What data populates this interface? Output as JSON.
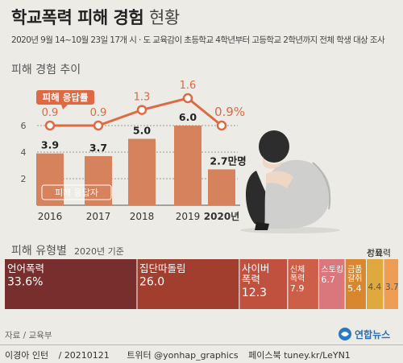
{
  "header": {
    "title_bold": "학교폭력 피해 경험",
    "title_light": "현황",
    "subtitle": "2020년 9월 14~10월 23일 17개 시 · 도 교육감이 초등학교 4학년부터 고등학교 2학년까지 전체 학생 대상 조사"
  },
  "trend_heading": "피해 경험 추이",
  "type_heading": "피해 유형별",
  "type_basis": "2020년 기준",
  "chart_data": [
    {
      "type": "bar",
      "categories": [
        "2016",
        "2017",
        "2018",
        "2019",
        "2020년"
      ],
      "series": [
        {
          "name": "피해 응답자",
          "unit": "만명",
          "values": [
            3.9,
            3.7,
            5.0,
            6.0,
            2.7
          ],
          "labels": [
            "3.9",
            "3.7",
            "5.0",
            "6.0",
            "2.7만명"
          ],
          "color": "#d6825c"
        },
        {
          "name": "피해 응답률",
          "type": "line",
          "unit": "%",
          "values": [
            0.9,
            0.9,
            1.3,
            1.6,
            0.9
          ],
          "labels": [
            "0.9",
            "0.9",
            "1.3",
            "1.6",
            "0.9%"
          ],
          "color": "#dd6a43"
        }
      ],
      "y_ticks": [
        "2",
        "4",
        "6"
      ],
      "ylim": [
        0,
        8
      ]
    },
    {
      "type": "bar",
      "stacked": true,
      "unit": "%",
      "segments": [
        {
          "name": "언어폭력",
          "label": "언어폭력",
          "value": 33.6,
          "value_label": "33.6%",
          "color": "#772e2c"
        },
        {
          "name": "집단따돌림",
          "label": "집단따돌림",
          "value": 26.0,
          "value_label": "26.0",
          "color": "#a13e2e"
        },
        {
          "name": "사이버폭력",
          "label": "사이버\n폭력",
          "value": 12.3,
          "value_label": "12.3",
          "color": "#c0513f"
        },
        {
          "name": "신체폭력",
          "label": "신체\n폭력",
          "value": 7.9,
          "value_label": "7.9",
          "color": "#cd5e47"
        },
        {
          "name": "스토킹",
          "label": "스토킹",
          "value": 6.7,
          "value_label": "6.7",
          "color": "#d9777c"
        },
        {
          "name": "금품갈취",
          "label": "금품\n갈취",
          "value": 5.4,
          "value_label": "5.4",
          "color": "#d8872e"
        },
        {
          "name": "강요",
          "label": "강요",
          "value": 4.4,
          "value_label": "4.4",
          "color": "#e0a93d"
        },
        {
          "name": "성폭력",
          "label": "성폭력",
          "value": 3.7,
          "value_label": "3.7",
          "color": "#ed9e54"
        }
      ]
    }
  ],
  "footer": {
    "source": "자료 / 교육부",
    "logo_text": "연합뉴스",
    "author": "이경아 인턴",
    "date": "20210121",
    "twitter": "트위터 @yonhap_graphics",
    "facebook": "페이스북 tuney.kr/LeYN1"
  },
  "colors": {
    "background": "#ecebe6",
    "bar": "#d6825c",
    "line": "#dd6a43",
    "legend_pill": "#dd6a43"
  },
  "illustration": "crouching-student-icon"
}
